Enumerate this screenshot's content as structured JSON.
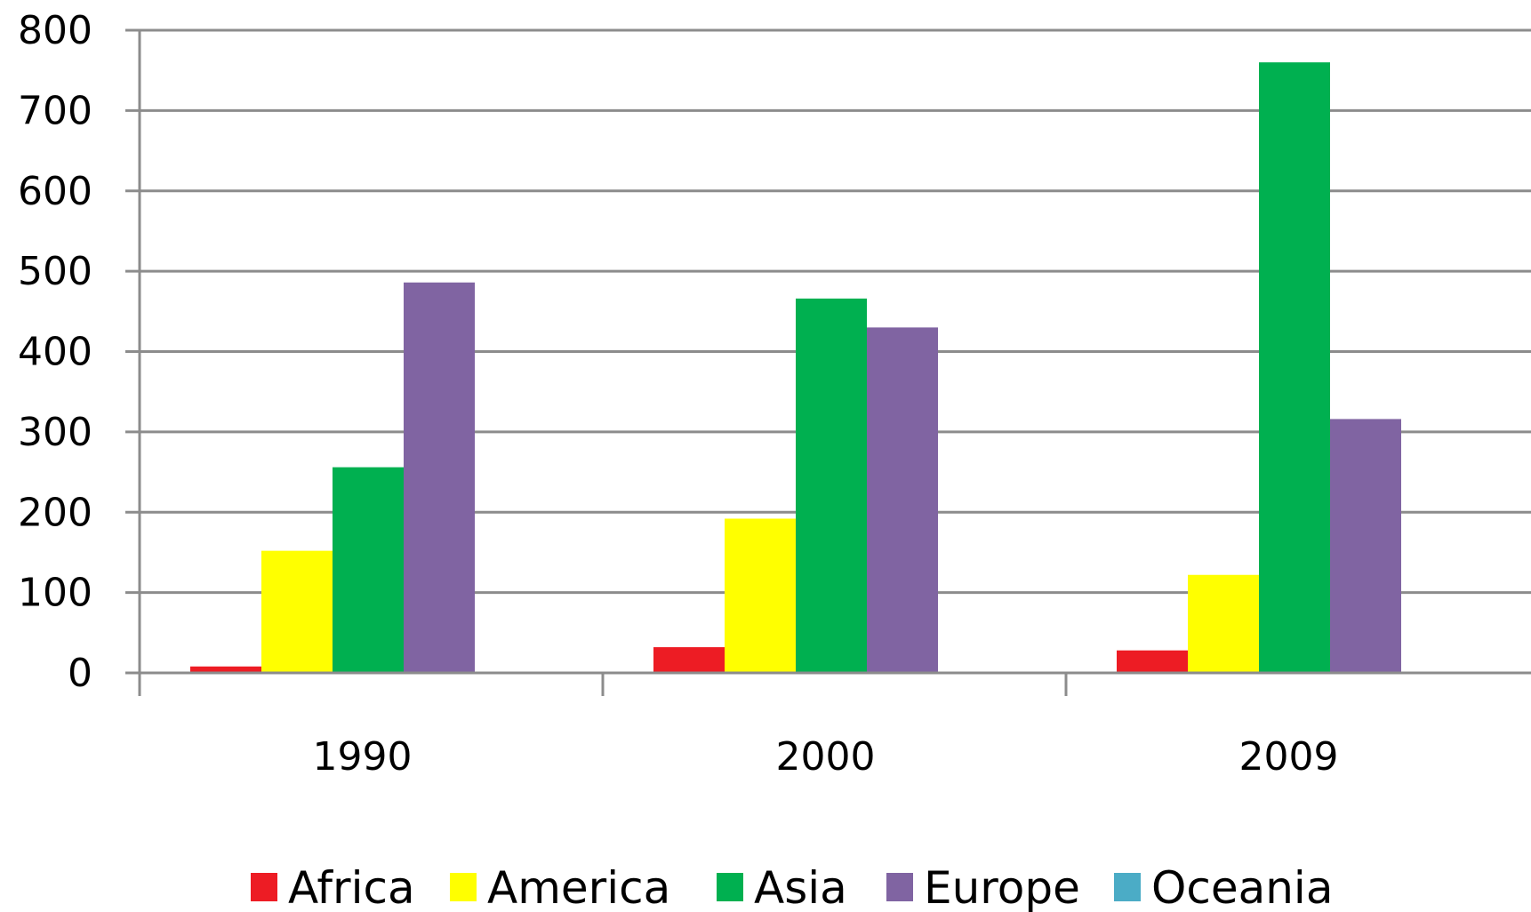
{
  "chart_data": {
    "type": "bar",
    "categories": [
      "1990",
      "2000",
      "2009"
    ],
    "series": [
      {
        "name": "Africa",
        "color": "#ed1c24",
        "values": [
          8,
          32,
          28
        ]
      },
      {
        "name": "America",
        "color": "#ffff00",
        "values": [
          152,
          192,
          122
        ]
      },
      {
        "name": "Asia",
        "color": "#00b050",
        "values": [
          256,
          466,
          760
        ]
      },
      {
        "name": "Europe",
        "color": "#8064a2",
        "values": [
          486,
          430,
          316
        ]
      },
      {
        "name": "Oceania",
        "color": "#4bacc6",
        "values": [
          0,
          0,
          0
        ]
      }
    ],
    "yticks": [
      "0",
      "100",
      "200",
      "300",
      "400",
      "500",
      "600",
      "700",
      "800"
    ],
    "ylim": [
      0,
      800
    ],
    "grid": true,
    "legend_position": "bottom"
  }
}
